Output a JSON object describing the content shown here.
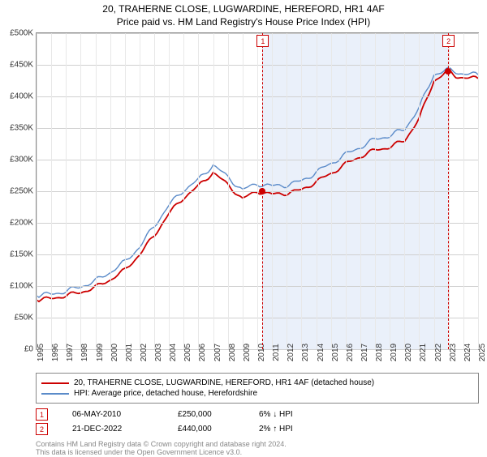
{
  "title": "20, TRAHERNE CLOSE, LUGWARDINE, HEREFORD, HR1 4AF",
  "subtitle": "Price paid vs. HM Land Registry's House Price Index (HPI)",
  "chart": {
    "type": "line",
    "ylim": [
      0,
      500000
    ],
    "ytick_step": 50000,
    "y_labels": [
      "£0",
      "£50K",
      "£100K",
      "£150K",
      "£200K",
      "£250K",
      "£300K",
      "£350K",
      "£400K",
      "£450K",
      "£500K"
    ],
    "years": [
      1995,
      1996,
      1997,
      1998,
      1999,
      2000,
      2001,
      2002,
      2003,
      2004,
      2005,
      2006,
      2007,
      2008,
      2009,
      2010,
      2011,
      2012,
      2013,
      2014,
      2015,
      2016,
      2017,
      2018,
      2019,
      2020,
      2021,
      2022,
      2023,
      2024,
      2025
    ],
    "background_color": "#ffffff",
    "grid_color": "#d0d0d0",
    "shaded_region": {
      "start_year": 2010.35,
      "end_year": 2022.97,
      "color": "#eaf0fa"
    },
    "series": [
      {
        "name": "property",
        "color": "#cc0000",
        "width": 1.8,
        "points": [
          [
            1995,
            78000
          ],
          [
            1996,
            80000
          ],
          [
            1997,
            85000
          ],
          [
            1998,
            90000
          ],
          [
            1999,
            98000
          ],
          [
            2000,
            110000
          ],
          [
            2001,
            125000
          ],
          [
            2002,
            150000
          ],
          [
            2003,
            180000
          ],
          [
            2004,
            215000
          ],
          [
            2005,
            240000
          ],
          [
            2006,
            258000
          ],
          [
            2007,
            280000
          ],
          [
            2008,
            260000
          ],
          [
            2009,
            238000
          ],
          [
            2010,
            250000
          ],
          [
            2011,
            245000
          ],
          [
            2012,
            247000
          ],
          [
            2013,
            252000
          ],
          [
            2014,
            265000
          ],
          [
            2015,
            278000
          ],
          [
            2016,
            293000
          ],
          [
            2017,
            305000
          ],
          [
            2018,
            315000
          ],
          [
            2019,
            320000
          ],
          [
            2020,
            330000
          ],
          [
            2021,
            365000
          ],
          [
            2022,
            425000
          ],
          [
            2022.97,
            440000
          ],
          [
            2023.5,
            432000
          ],
          [
            2024,
            430000
          ],
          [
            2025,
            428000
          ]
        ]
      },
      {
        "name": "hpi",
        "color": "#5b8bc9",
        "width": 1.4,
        "points": [
          [
            1995,
            85000
          ],
          [
            1996,
            87000
          ],
          [
            1997,
            92000
          ],
          [
            1998,
            99000
          ],
          [
            1999,
            108000
          ],
          [
            2000,
            122000
          ],
          [
            2001,
            138000
          ],
          [
            2002,
            162000
          ],
          [
            2003,
            195000
          ],
          [
            2004,
            228000
          ],
          [
            2005,
            252000
          ],
          [
            2006,
            268000
          ],
          [
            2007,
            292000
          ],
          [
            2008,
            272000
          ],
          [
            2009,
            252000
          ],
          [
            2010,
            262000
          ],
          [
            2011,
            258000
          ],
          [
            2012,
            260000
          ],
          [
            2013,
            266000
          ],
          [
            2014,
            280000
          ],
          [
            2015,
            294000
          ],
          [
            2016,
            308000
          ],
          [
            2017,
            320000
          ],
          [
            2018,
            332000
          ],
          [
            2019,
            338000
          ],
          [
            2020,
            348000
          ],
          [
            2021,
            382000
          ],
          [
            2022,
            435000
          ],
          [
            2023,
            442000
          ],
          [
            2024,
            436000
          ],
          [
            2025,
            434000
          ]
        ]
      }
    ],
    "markers": [
      {
        "id": "1",
        "year": 2010.35,
        "value": 250000
      },
      {
        "id": "2",
        "year": 2022.97,
        "value": 440000
      }
    ]
  },
  "legend": [
    {
      "color": "#cc0000",
      "label": "20, TRAHERNE CLOSE, LUGWARDINE, HEREFORD, HR1 4AF (detached house)"
    },
    {
      "color": "#5b8bc9",
      "label": "HPI: Average price, detached house, Herefordshire"
    }
  ],
  "transactions": [
    {
      "id": "1",
      "date": "06-MAY-2010",
      "price": "£250,000",
      "delta": "6% ↓ HPI"
    },
    {
      "id": "2",
      "date": "21-DEC-2022",
      "price": "£440,000",
      "delta": "2% ↑ HPI"
    }
  ],
  "footer1": "Contains HM Land Registry data © Crown copyright and database right 2024.",
  "footer2": "This data is licensed under the Open Government Licence v3.0."
}
